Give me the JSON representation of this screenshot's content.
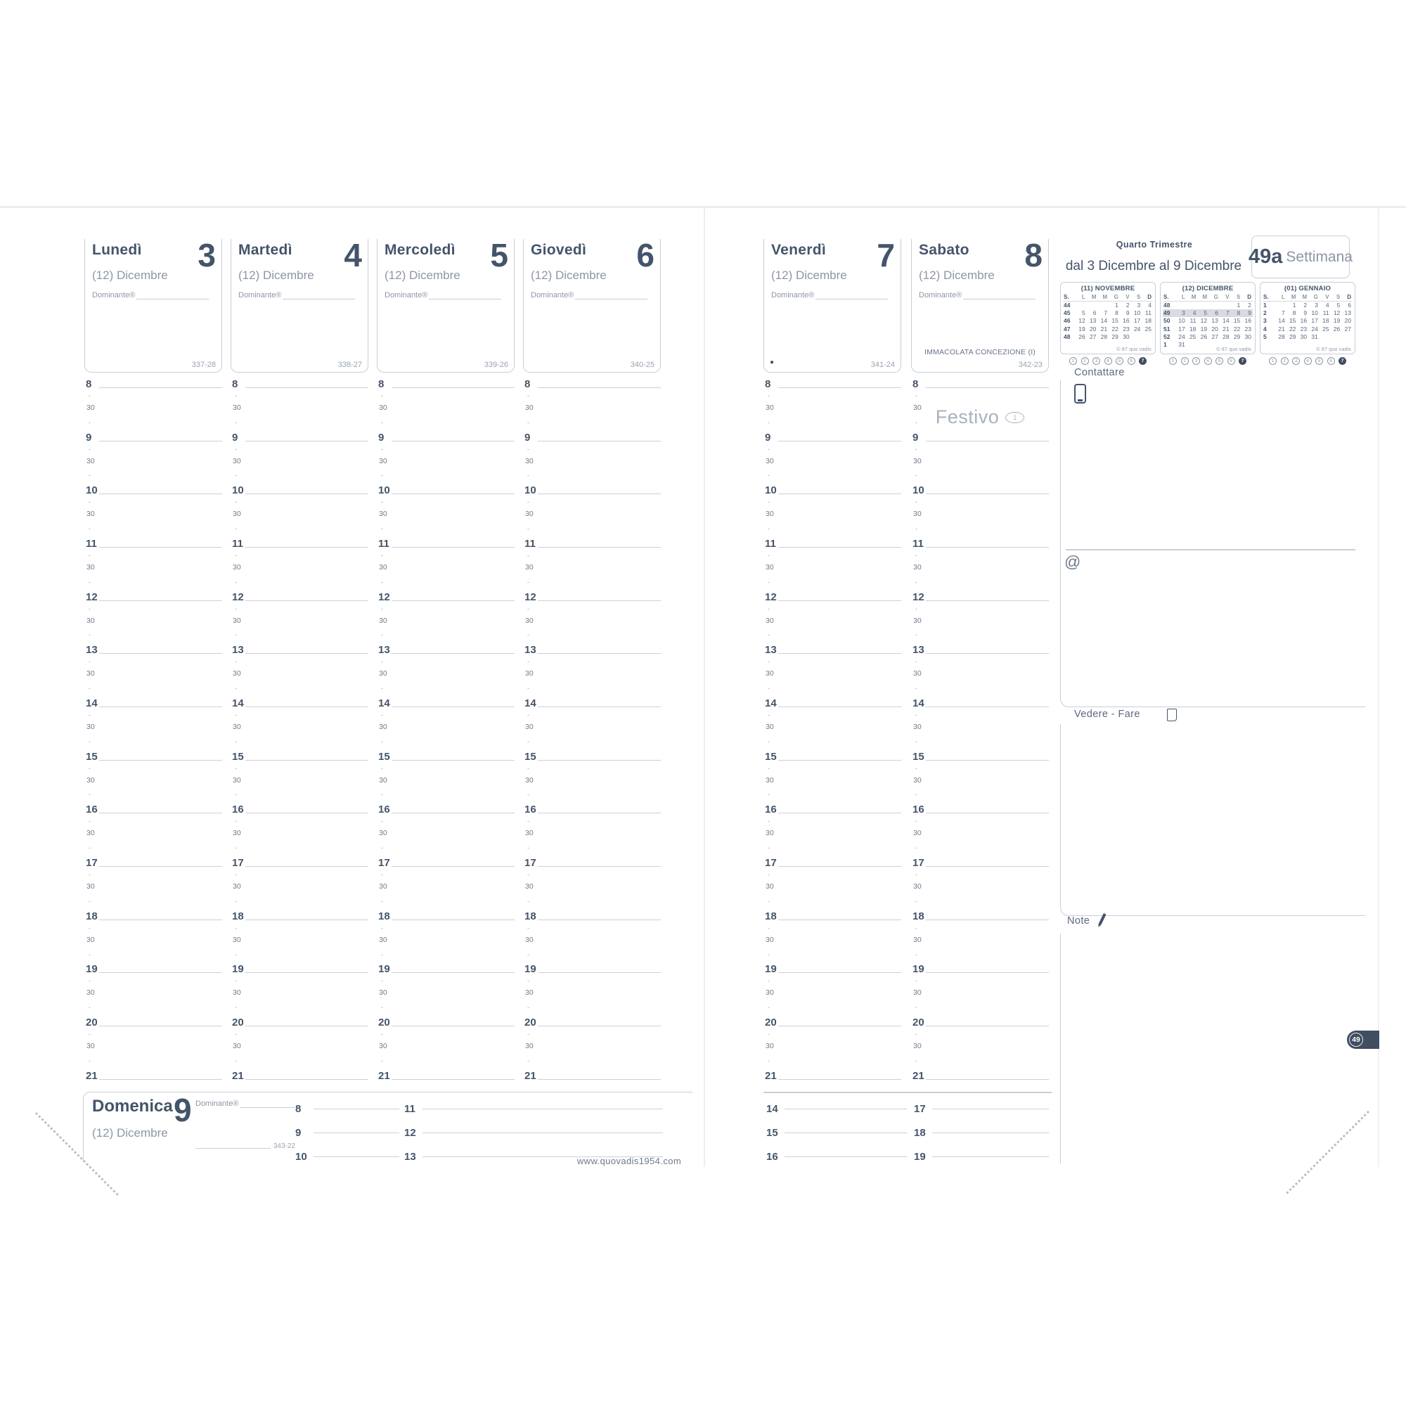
{
  "page": {
    "website": "www.quovadis1954.com",
    "page_tab": "49"
  },
  "week_header": {
    "quarter": "Quarto Trimestre",
    "range": "dal 3 Dicembre al 9 Dicembre",
    "week_number": "49a",
    "week_word": "Settimana"
  },
  "labels": {
    "dominante": "Dominante®",
    "contattare": "Contattare",
    "at_symbol": "@",
    "vedere_fare": "Vedere - Fare",
    "note": "Note",
    "festivo": "Festivo",
    "festivo_mark": "1",
    "moon_mark": "●"
  },
  "days": [
    {
      "name": "Lunedì",
      "number": "3",
      "month": "(12) Dicembre",
      "counter": "337-28"
    },
    {
      "name": "Martedì",
      "number": "4",
      "month": "(12) Dicembre",
      "counter": "338-27"
    },
    {
      "name": "Mercoledì",
      "number": "5",
      "month": "(12) Dicembre",
      "counter": "339-26"
    },
    {
      "name": "Giovedì",
      "number": "6",
      "month": "(12) Dicembre",
      "counter": "340-25"
    },
    {
      "name": "Venerdì",
      "number": "7",
      "month": "(12) Dicembre",
      "counter": "341-24",
      "moon": true
    },
    {
      "name": "Sabato",
      "number": "8",
      "month": "(12) Dicembre",
      "counter": "342-23",
      "holiday": "IMMACOLATA CONCEZIONE (I)",
      "festivo": true
    }
  ],
  "sunday": {
    "name": "Domenica",
    "number": "9",
    "month": "(12) Dicembre",
    "counter": "343-22",
    "hour_groups": [
      [
        "8",
        "9",
        "10"
      ],
      [
        "11",
        "12",
        "13"
      ],
      [
        "14",
        "15",
        "16"
      ],
      [
        "17",
        "18",
        "19"
      ]
    ]
  },
  "time_grid": {
    "hours": [
      "8",
      "9",
      "10",
      "11",
      "12",
      "13",
      "14",
      "15",
      "16",
      "17",
      "18",
      "19",
      "20",
      "21"
    ],
    "half": "30",
    "quarter": "-"
  },
  "mini_calendars": [
    {
      "title": "(11) NOVEMBRE",
      "week_col": "S.",
      "day_headers": [
        "L",
        "M",
        "M",
        "G",
        "V",
        "S",
        "D"
      ],
      "weeks": [
        {
          "w": "44",
          "d": [
            "",
            "",
            "",
            "1",
            "2",
            "3",
            "4"
          ]
        },
        {
          "w": "45",
          "d": [
            "5",
            "6",
            "7",
            "8",
            "9",
            "10",
            "11"
          ]
        },
        {
          "w": "46",
          "d": [
            "12",
            "13",
            "14",
            "15",
            "16",
            "17",
            "18"
          ]
        },
        {
          "w": "47",
          "d": [
            "19",
            "20",
            "21",
            "22",
            "23",
            "24",
            "25"
          ]
        },
        {
          "w": "48",
          "d": [
            "26",
            "27",
            "28",
            "29",
            "30",
            "",
            ""
          ]
        }
      ],
      "copyright": "© 87 quo vadis",
      "legend": [
        "1",
        "2",
        "3",
        "4",
        "5",
        "6",
        "7"
      ]
    },
    {
      "title": "(12) DICEMBRE",
      "week_col": "S.",
      "day_headers": [
        "L",
        "M",
        "M",
        "G",
        "V",
        "S",
        "D"
      ],
      "weeks": [
        {
          "w": "48",
          "d": [
            "",
            "",
            "",
            "",
            "",
            "1",
            "2"
          ]
        },
        {
          "w": "49",
          "d": [
            "3",
            "4",
            "5",
            "6",
            "7",
            "8",
            "9"
          ],
          "highlight": true
        },
        {
          "w": "50",
          "d": [
            "10",
            "11",
            "12",
            "13",
            "14",
            "15",
            "16"
          ]
        },
        {
          "w": "51",
          "d": [
            "17",
            "18",
            "19",
            "20",
            "21",
            "22",
            "23"
          ]
        },
        {
          "w": "52",
          "d": [
            "24",
            "25",
            "26",
            "27",
            "28",
            "29",
            "30"
          ]
        },
        {
          "w": "1",
          "d": [
            "31",
            "",
            "",
            "",
            "",
            "",
            ""
          ]
        }
      ],
      "copyright": "© 87 quo vadis",
      "legend": [
        "1",
        "2",
        "3",
        "4",
        "5",
        "6",
        "7"
      ]
    },
    {
      "title": "(01) GENNAIO",
      "week_col": "S.",
      "day_headers": [
        "L",
        "M",
        "M",
        "G",
        "V",
        "S",
        "D"
      ],
      "weeks": [
        {
          "w": "1",
          "d": [
            "",
            "1",
            "2",
            "3",
            "4",
            "5",
            "6"
          ]
        },
        {
          "w": "2",
          "d": [
            "7",
            "8",
            "9",
            "10",
            "11",
            "12",
            "13"
          ]
        },
        {
          "w": "3",
          "d": [
            "14",
            "15",
            "16",
            "17",
            "18",
            "19",
            "20"
          ]
        },
        {
          "w": "4",
          "d": [
            "21",
            "22",
            "23",
            "24",
            "25",
            "26",
            "27"
          ]
        },
        {
          "w": "5",
          "d": [
            "28",
            "29",
            "30",
            "31",
            "",
            "",
            ""
          ]
        }
      ],
      "copyright": "© 87 quo vadis",
      "legend": [
        "1",
        "2",
        "3",
        "4",
        "5",
        "6",
        "7"
      ]
    }
  ]
}
